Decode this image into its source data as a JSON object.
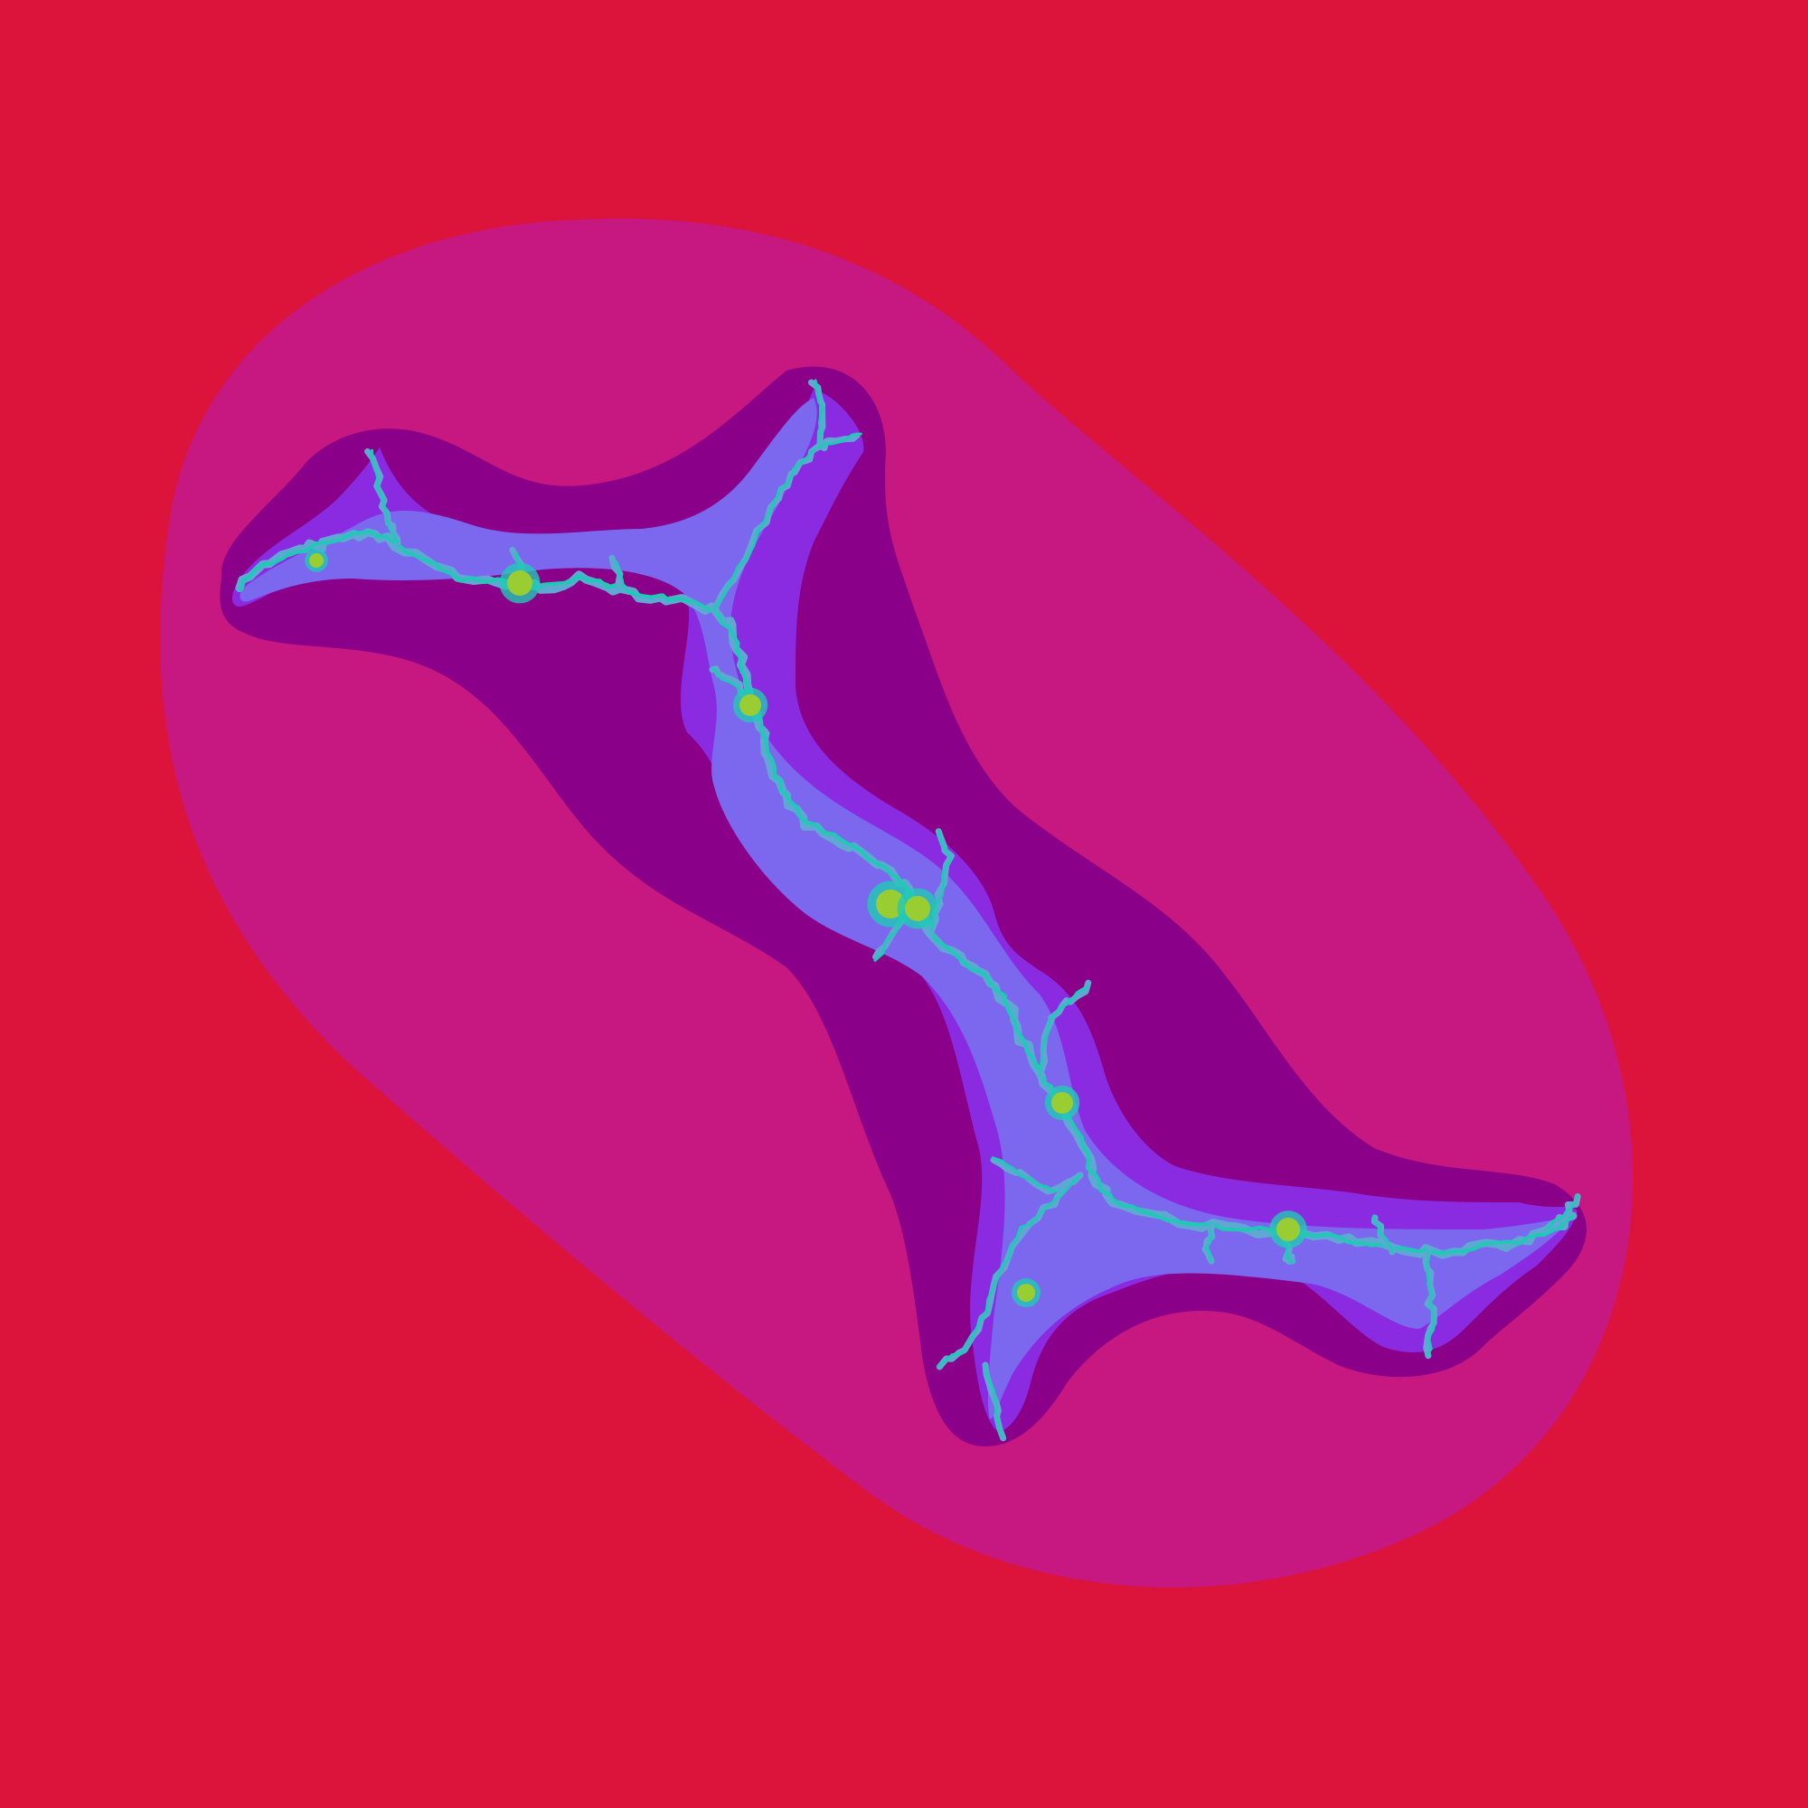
{
  "image": {
    "subject": "julia-set-fractal",
    "palette": {
      "background": "#DC143C",
      "outer_halo": "#C71780",
      "mid_halo": "#8B0088",
      "inner_band": "#8A2BE2",
      "core_band": "#7B68EE",
      "filament": "#20C9B6",
      "hotspot": "#9ACD32"
    }
  }
}
